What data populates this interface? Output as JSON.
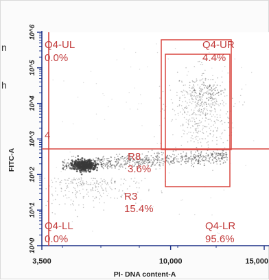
{
  "chart_data": {
    "type": "scatter",
    "xlabel": "PI- DNA content-A",
    "ylabel": "FITC-A",
    "x_ticks": [
      "3,500",
      "10,000",
      "15,000"
    ],
    "xlim": [
      3500,
      15000
    ],
    "y_ticks": [
      "10^0",
      "10^1",
      "10^2",
      "10^3",
      "10^4",
      "10^5",
      "10^6"
    ],
    "ylim_log10": [
      0,
      6
    ],
    "y_scale": "log",
    "quadrant_x_divider": 3700,
    "quadrant_y_divider_log10": 2.45,
    "quadrants": [
      {
        "name": "Q4-UL",
        "percent": "0.0%"
      },
      {
        "name": "Q4-UR",
        "percent": "4.4%"
      },
      {
        "name": "Q4-LL",
        "percent": "0.0%"
      },
      {
        "name": "Q4-LR",
        "percent": "95.6%"
      }
    ],
    "gates": [
      {
        "name": "R8",
        "percent": "3.6%"
      },
      {
        "name": "R3",
        "percent": "15.4%"
      }
    ],
    "left_annotation": "4",
    "edge_marks": [
      "n",
      "h"
    ],
    "grid": false,
    "colors": {
      "gate": "#d9453f",
      "dots": "#3a3a3a",
      "axis": "#1a2f86"
    }
  }
}
